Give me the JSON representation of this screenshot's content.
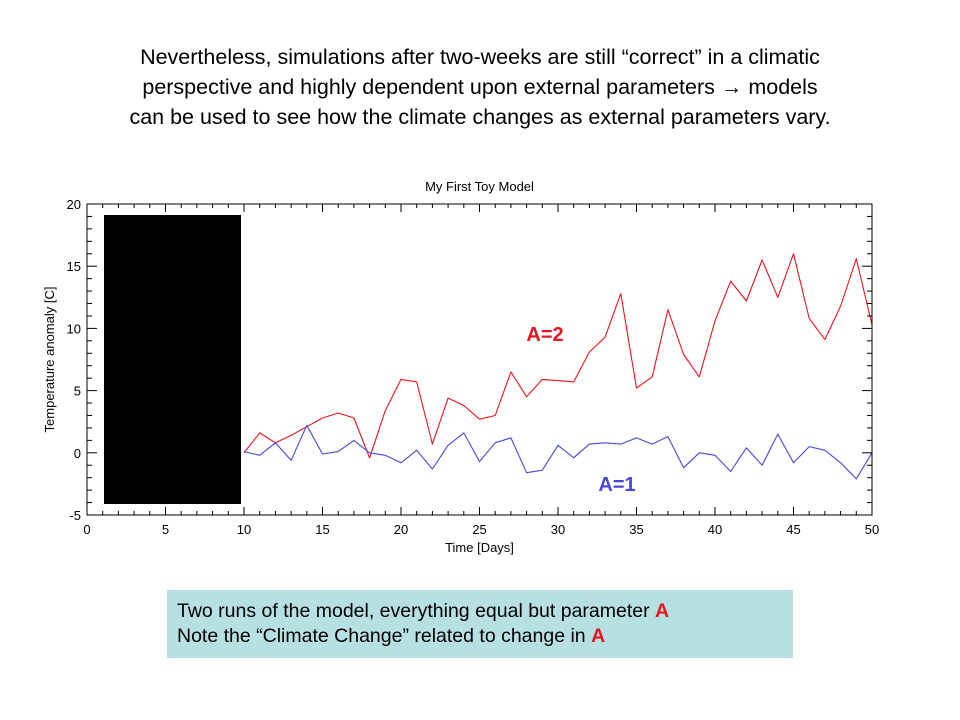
{
  "heading": {
    "line1": "Nevertheless, simulations after two-weeks are still “correct” in a climatic",
    "line2": "perspective and highly dependent upon external parameters → models",
    "line3": "can be used to see how the climate changes as external parameters vary."
  },
  "chart_data": {
    "type": "line",
    "title": "My First Toy Model",
    "xlabel": "Time [Days]",
    "ylabel": "Temperature anomaly [C]",
    "xlim": [
      0,
      50
    ],
    "ylim": [
      -5,
      20
    ],
    "x_ticks": [
      "0",
      "5",
      "10",
      "15",
      "20",
      "25",
      "30",
      "35",
      "40",
      "45",
      "50"
    ],
    "y_ticks": [
      "-5",
      "0",
      "5",
      "10",
      "15",
      "20"
    ],
    "grid": false,
    "redacted_region": "x 1 to 10 covered by a solid black box",
    "series": [
      {
        "name": "A=2",
        "color": "#e8141e",
        "x": [
          10,
          11,
          12,
          13,
          14,
          15,
          16,
          17,
          18,
          19,
          20,
          21,
          22,
          23,
          24,
          25,
          26,
          27,
          28,
          29,
          30,
          31,
          32,
          33,
          34,
          35,
          36,
          37,
          38,
          39,
          40,
          41,
          42,
          43,
          44,
          45,
          46,
          47,
          48,
          49,
          50
        ],
        "y": [
          0.0,
          1.6,
          0.8,
          1.4,
          2.1,
          2.8,
          3.2,
          2.8,
          -0.4,
          3.4,
          5.9,
          5.7,
          0.7,
          4.4,
          3.8,
          2.7,
          3.0,
          6.5,
          4.5,
          5.9,
          5.8,
          5.7,
          8.1,
          9.3,
          12.8,
          5.2,
          6.1,
          11.5,
          7.9,
          6.1,
          10.6,
          13.8,
          12.2,
          15.5,
          12.5,
          16.0,
          10.8,
          9.1,
          11.8,
          15.6,
          10.3
        ]
      },
      {
        "name": "A=1",
        "color": "#4848d8",
        "x": [
          10,
          11,
          12,
          13,
          14,
          15,
          16,
          17,
          18,
          19,
          20,
          21,
          22,
          23,
          24,
          25,
          26,
          27,
          28,
          29,
          30,
          31,
          32,
          33,
          34,
          35,
          36,
          37,
          38,
          39,
          40,
          41,
          42,
          43,
          44,
          45,
          46,
          47,
          48,
          49,
          50
        ],
        "y": [
          0.1,
          -0.2,
          0.8,
          -0.6,
          2.2,
          -0.1,
          0.1,
          1.0,
          0.0,
          -0.2,
          -0.8,
          0.2,
          -1.3,
          0.6,
          1.6,
          -0.7,
          0.8,
          1.2,
          -1.6,
          -1.4,
          0.6,
          -0.4,
          0.7,
          0.8,
          0.7,
          1.2,
          0.7,
          1.3,
          -1.2,
          0.0,
          -0.2,
          -1.5,
          0.4,
          -1.0,
          1.5,
          -0.8,
          0.5,
          0.2,
          -0.8,
          -2.1,
          0.0
        ]
      }
    ],
    "series_labels": [
      {
        "text": "A=2",
        "color": "#e8141e"
      },
      {
        "text": "A=1",
        "color": "#4848d8"
      }
    ]
  },
  "caption": {
    "line1_text": "Two runs of the model, everything equal but parameter ",
    "line1_param": "A",
    "line2_text": "Note the “Climate Change” related to change in ",
    "line2_param": "A"
  }
}
